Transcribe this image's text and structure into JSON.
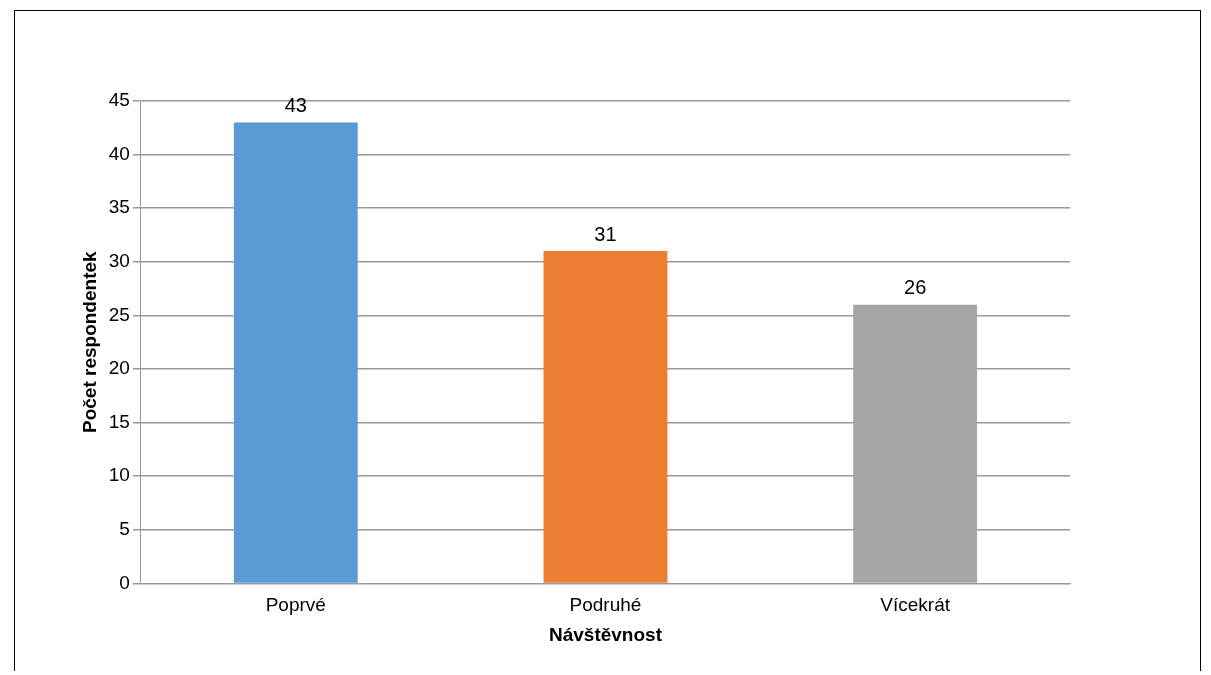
{
  "chart_data": {
    "type": "bar",
    "xlabel": "Návštěvnost",
    "ylabel": "Počet respondentek",
    "categories": [
      "Poprvé",
      "Podruhé",
      "Vícekrát"
    ],
    "values": [
      43,
      31,
      26
    ],
    "colors": [
      "#5b9bd5",
      "#ed7d31",
      "#a5a5a5"
    ],
    "ylim": [
      0,
      45
    ],
    "yticks": [
      0,
      5,
      10,
      15,
      20,
      25,
      30,
      35,
      40,
      45
    ],
    "grid": "y",
    "data_labels": true
  }
}
